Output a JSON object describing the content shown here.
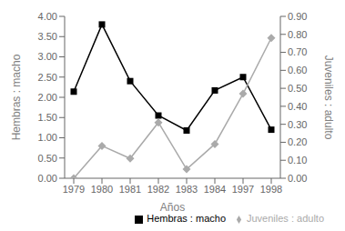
{
  "chart_data": {
    "type": "line",
    "xlabel": "Años",
    "ylabel": "Hembras : macho",
    "y2label": "Juveniles : adulto",
    "categories": [
      "1979",
      "1980",
      "1981",
      "1982",
      "1983",
      "1984",
      "1997",
      "1998"
    ],
    "series": [
      {
        "name": "Hembras : macho",
        "color": "#000000",
        "marker": "square",
        "values": [
          2.14,
          3.8,
          2.4,
          1.55,
          1.18,
          2.17,
          2.5,
          1.2
        ]
      },
      {
        "name": "Juveniles : adulto",
        "color": "#aaaaaa",
        "marker": "diamond",
        "axis": "y2",
        "values": [
          0.0,
          0.18,
          0.11,
          0.31,
          0.05,
          0.19,
          0.47,
          0.78
        ]
      }
    ],
    "ylim": [
      0.0,
      4.0
    ],
    "yticks": [
      {
        "value": 0,
        "label": "0.00"
      },
      {
        "value": 0.5,
        "label": "0.50"
      },
      {
        "value": 1,
        "label": "1.00"
      },
      {
        "value": 1.5,
        "label": "1.50"
      },
      {
        "value": 2,
        "label": "2.00"
      },
      {
        "value": 2.5,
        "label": "2.50"
      },
      {
        "value": 3,
        "label": "3.00"
      },
      {
        "value": 3.5,
        "label": "3.50"
      },
      {
        "value": 4,
        "label": "4.00"
      }
    ],
    "y2lim": [
      0.0,
      0.9
    ],
    "y2ticks": [
      {
        "value": 0,
        "label": "0.00"
      },
      {
        "value": 0.1,
        "label": "0.10"
      },
      {
        "value": 0.2,
        "label": "0.20"
      },
      {
        "value": 0.3,
        "label": "0.30"
      },
      {
        "value": 0.4,
        "label": "0.40"
      },
      {
        "value": 0.5,
        "label": "0.50"
      },
      {
        "value": 0.6,
        "label": "0.60"
      },
      {
        "value": 0.7,
        "label": "0.70"
      },
      {
        "value": 0.8,
        "label": "0.80"
      },
      {
        "value": 0.9,
        "label": "0.90"
      }
    ],
    "legend": "lower right",
    "grid": false
  }
}
